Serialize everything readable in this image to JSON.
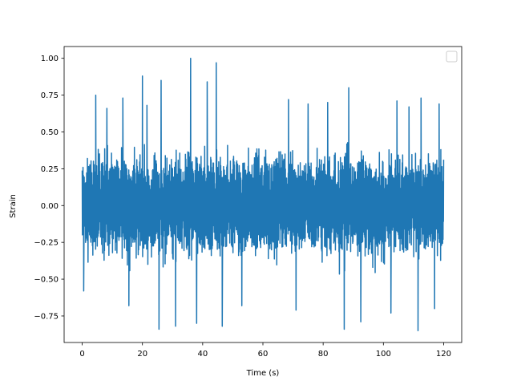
{
  "chart_data": {
    "type": "line",
    "title": "",
    "xlabel": "Time (s)",
    "ylabel": "Strain",
    "xlim": [
      -6,
      126
    ],
    "ylim": [
      -0.93,
      1.08
    ],
    "x_ticks": [
      0,
      20,
      40,
      60,
      80,
      100,
      120
    ],
    "x_tick_labels": [
      "0",
      "20",
      "40",
      "60",
      "80",
      "100",
      "120"
    ],
    "y_ticks": [
      -0.75,
      -0.5,
      -0.25,
      0.0,
      0.25,
      0.5,
      0.75,
      1.0
    ],
    "y_tick_labels": [
      "−0.75",
      "−0.50",
      "−0.25",
      "0.00",
      "0.25",
      "0.50",
      "0.75",
      "1.00"
    ],
    "grid": false,
    "legend": {
      "placement": "top-right",
      "entries": []
    },
    "series": [
      {
        "color": "#1f77b4",
        "x_range": [
          0,
          120
        ],
        "typical_band": [
          -0.4,
          0.4
        ],
        "max": 1.0,
        "min": -0.85,
        "peaks": [
          {
            "x": 4.5,
            "y": 0.75
          },
          {
            "x": 8.2,
            "y": 0.66
          },
          {
            "x": 13.5,
            "y": 0.73
          },
          {
            "x": 20.0,
            "y": 0.88
          },
          {
            "x": 21.5,
            "y": 0.68
          },
          {
            "x": 26.2,
            "y": 0.85
          },
          {
            "x": 36.0,
            "y": 1.0
          },
          {
            "x": 41.5,
            "y": 0.84
          },
          {
            "x": 44.5,
            "y": 0.97
          },
          {
            "x": 68.5,
            "y": 0.72
          },
          {
            "x": 75.0,
            "y": 0.69
          },
          {
            "x": 81.5,
            "y": 0.7
          },
          {
            "x": 88.5,
            "y": 0.8
          },
          {
            "x": 104.5,
            "y": 0.71
          },
          {
            "x": 108.5,
            "y": 0.67
          },
          {
            "x": 112.5,
            "y": 0.73
          },
          {
            "x": 118.5,
            "y": 0.69
          }
        ],
        "troughs": [
          {
            "x": 0.5,
            "y": -0.58
          },
          {
            "x": 15.5,
            "y": -0.68
          },
          {
            "x": 25.5,
            "y": -0.84
          },
          {
            "x": 31.0,
            "y": -0.82
          },
          {
            "x": 38.0,
            "y": -0.8
          },
          {
            "x": 46.5,
            "y": -0.82
          },
          {
            "x": 53.0,
            "y": -0.68
          },
          {
            "x": 71.0,
            "y": -0.71
          },
          {
            "x": 87.0,
            "y": -0.84
          },
          {
            "x": 92.5,
            "y": -0.79
          },
          {
            "x": 102.5,
            "y": -0.73
          },
          {
            "x": 111.5,
            "y": -0.85
          },
          {
            "x": 117.0,
            "y": -0.7
          }
        ]
      }
    ]
  }
}
